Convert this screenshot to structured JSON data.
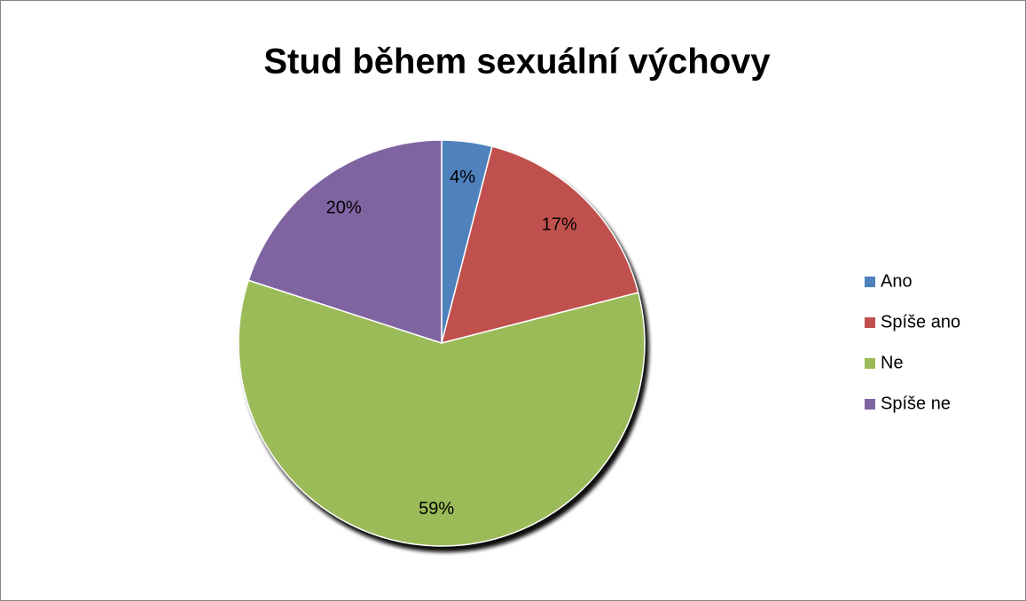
{
  "chart_data": {
    "type": "pie",
    "title": "Stud během sexuální výchovy",
    "categories": [
      "Ano",
      "Spíše ano",
      "Ne",
      "Spíše ne"
    ],
    "values": [
      4,
      17,
      59,
      20
    ],
    "value_labels": [
      "4%",
      "17%",
      "59%",
      "20%"
    ],
    "colors": [
      "#4f81bd",
      "#c0504d",
      "#9bbb59",
      "#8064a2"
    ],
    "legend": "right"
  }
}
